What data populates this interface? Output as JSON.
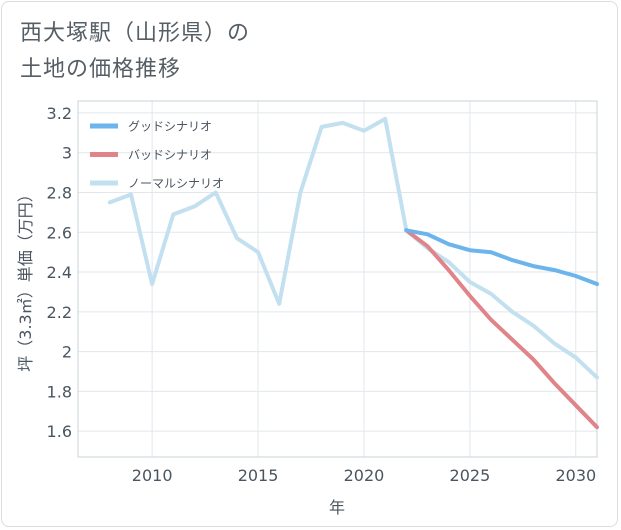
{
  "title_lines": [
    "西大塚駅（山形県）の",
    "土地の価格推移"
  ],
  "chart_data": {
    "type": "line",
    "xlabel": "年",
    "ylabel": "坪（3.3㎡）単価（万円）",
    "xlim": [
      2006.5,
      2031
    ],
    "ylim": [
      1.47,
      3.26
    ],
    "x_ticks": [
      2010,
      2015,
      2020,
      2025,
      2030
    ],
    "y_ticks": [
      1.6,
      1.8,
      2,
      2.2,
      2.4,
      2.6,
      2.8,
      3,
      3.2
    ],
    "legend_position": "top-left",
    "series": [
      {
        "name": "グッドシナリオ",
        "color": "#6cb4ec",
        "x": [
          2022,
          2023,
          2024,
          2025,
          2026,
          2027,
          2028,
          2029,
          2030,
          2031
        ],
        "values": [
          2.61,
          2.59,
          2.54,
          2.51,
          2.5,
          2.46,
          2.43,
          2.41,
          2.38,
          2.34
        ]
      },
      {
        "name": "バッドシナリオ",
        "color": "#e08489",
        "x": [
          2022,
          2023,
          2024,
          2025,
          2026,
          2027,
          2028,
          2029,
          2030,
          2031
        ],
        "values": [
          2.61,
          2.53,
          2.41,
          2.28,
          2.16,
          2.06,
          1.96,
          1.84,
          1.73,
          1.62
        ]
      },
      {
        "name": "ノーマルシナリオ",
        "color": "#c2e0ef",
        "x": [
          2008,
          2009,
          2010,
          2011,
          2012,
          2013,
          2014,
          2015,
          2016,
          2017,
          2018,
          2019,
          2020,
          2021,
          2022,
          2023,
          2024,
          2025,
          2026,
          2027,
          2028,
          2029,
          2030,
          2031
        ],
        "values": [
          2.75,
          2.79,
          2.34,
          2.69,
          2.73,
          2.8,
          2.57,
          2.5,
          2.24,
          2.8,
          3.13,
          3.15,
          3.11,
          3.17,
          2.61,
          2.52,
          2.45,
          2.35,
          2.29,
          2.2,
          2.13,
          2.04,
          1.97,
          1.87
        ]
      }
    ]
  }
}
